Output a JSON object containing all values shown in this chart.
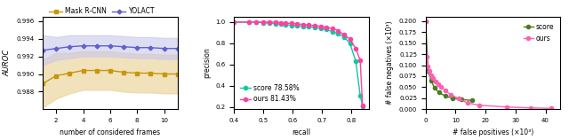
{
  "plot1": {
    "x": [
      1,
      2,
      3,
      4,
      5,
      6,
      7,
      8,
      9,
      10,
      11
    ],
    "mask_rcnn_mean": [
      0.9889,
      0.9898,
      0.9901,
      0.9904,
      0.9904,
      0.9904,
      0.9902,
      0.9901,
      0.9901,
      0.99,
      0.99
    ],
    "mask_rcnn_lower": [
      0.9862,
      0.9872,
      0.9878,
      0.9882,
      0.9882,
      0.9882,
      0.988,
      0.9879,
      0.9879,
      0.9878,
      0.9878
    ],
    "mask_rcnn_upper": [
      0.9916,
      0.9924,
      0.9924,
      0.9926,
      0.9926,
      0.9926,
      0.9924,
      0.9923,
      0.9923,
      0.9922,
      0.9922
    ],
    "yolact_mean": [
      0.9927,
      0.9929,
      0.9931,
      0.9932,
      0.9932,
      0.9932,
      0.9931,
      0.993,
      0.993,
      0.9929,
      0.9929
    ],
    "yolact_lower": [
      0.991,
      0.9916,
      0.9918,
      0.992,
      0.992,
      0.992,
      0.9919,
      0.9918,
      0.9918,
      0.9917,
      0.9917
    ],
    "yolact_upper": [
      0.9944,
      0.9942,
      0.9944,
      0.9944,
      0.9944,
      0.9944,
      0.9943,
      0.9942,
      0.9942,
      0.9941,
      0.9941
    ],
    "mask_color": "#C8960C",
    "yolact_color": "#6060D0",
    "mask_fill": "#E8D090",
    "yolact_fill": "#C8C8EC",
    "ylabel": "AUROC",
    "xlabel": "number of considered frames",
    "ylim": [
      0.986,
      0.9965
    ],
    "yticks": [
      0.988,
      0.99,
      0.992,
      0.994,
      0.996
    ],
    "legend_labels": [
      "Mask R-CNN",
      "YOLACT"
    ]
  },
  "plot2": {
    "score_recall": [
      0.4,
      0.45,
      0.475,
      0.5,
      0.52,
      0.54,
      0.56,
      0.575,
      0.595,
      0.615,
      0.635,
      0.655,
      0.675,
      0.695,
      0.715,
      0.735,
      0.755,
      0.775,
      0.795,
      0.815,
      0.83,
      0.838
    ],
    "score_precision": [
      1.0,
      1.0,
      1.0,
      0.995,
      0.99,
      0.985,
      0.98,
      0.975,
      0.97,
      0.965,
      0.96,
      0.955,
      0.95,
      0.94,
      0.93,
      0.91,
      0.89,
      0.86,
      0.8,
      0.63,
      0.31,
      0.21
    ],
    "ours_recall": [
      0.4,
      0.45,
      0.475,
      0.5,
      0.52,
      0.54,
      0.56,
      0.575,
      0.595,
      0.615,
      0.635,
      0.655,
      0.675,
      0.695,
      0.715,
      0.735,
      0.755,
      0.775,
      0.795,
      0.815,
      0.83,
      0.838
    ],
    "ours_precision": [
      1.0,
      1.0,
      1.0,
      1.0,
      1.0,
      1.0,
      0.995,
      0.99,
      0.988,
      0.983,
      0.978,
      0.973,
      0.968,
      0.96,
      0.95,
      0.94,
      0.92,
      0.88,
      0.84,
      0.75,
      0.64,
      0.215
    ],
    "score_color": "#10C8A0",
    "ours_color": "#FF40A0",
    "xlabel": "recall",
    "ylabel": "precision",
    "xlim": [
      0.4,
      0.86
    ],
    "ylim": [
      0.18,
      1.05
    ],
    "score_label": "score 78.58%",
    "ours_label": "ours 81.43%"
  },
  "plot3": {
    "score_fp": [
      0.0,
      0.8,
      1.8,
      3.0,
      4.5,
      6.5,
      9.0,
      12.0,
      15.5
    ],
    "score_fn": [
      0.2,
      0.088,
      0.065,
      0.048,
      0.038,
      0.03,
      0.025,
      0.022,
      0.02
    ],
    "ours_fp": [
      0.0,
      0.3,
      0.8,
      1.2,
      1.8,
      2.5,
      3.2,
      4.2,
      5.2,
      6.5,
      8.5,
      11.0,
      14.0,
      18.0,
      27.0,
      35.0,
      42.0
    ],
    "ours_fn": [
      0.2,
      0.12,
      0.098,
      0.088,
      0.078,
      0.07,
      0.063,
      0.056,
      0.05,
      0.042,
      0.033,
      0.024,
      0.014,
      0.009,
      0.005,
      0.003,
      0.002
    ],
    "score_color": "#4A7C20",
    "ours_color": "#FF60B0",
    "xlabel": "# false positives (×10³)",
    "ylabel": "# false negatives (×10³)",
    "xlim": [
      0,
      45
    ],
    "ylim": [
      0,
      0.21
    ],
    "yticks": [
      0.0,
      0.025,
      0.05,
      0.075,
      0.1,
      0.125,
      0.15,
      0.175,
      0.2
    ],
    "xticks": [
      0,
      10,
      20,
      30,
      40
    ],
    "score_label": "score",
    "ours_label": "ours"
  }
}
